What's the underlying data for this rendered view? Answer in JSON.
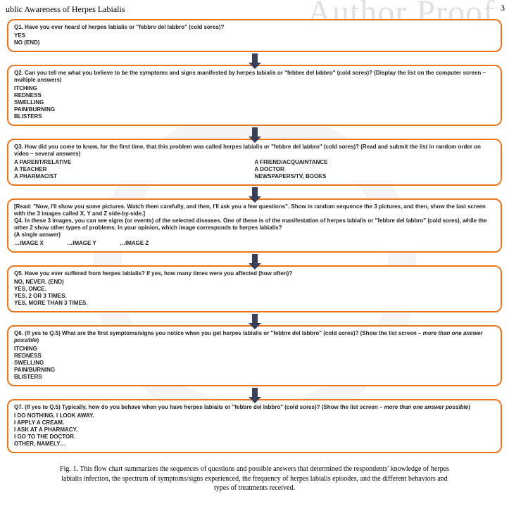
{
  "header": {
    "title": "ublic Awareness of Herpes Labialis",
    "page_num": "3"
  },
  "watermark": "Author Proof",
  "flow": {
    "box_border_color": "#e87722",
    "arrow_color": "#3b3f55",
    "q1": {
      "prompt": "Q1. Have you ever heard of herpes labialis or \"febbre del labbro\" (cold sores)?",
      "opts": [
        "YES",
        "NO (END)"
      ]
    },
    "q2": {
      "prompt": "Q2. Can you tell me what you believe to be the symptoms and signs manifested by herpes labialis or \"febbre del labbro\" (cold sores)? (Display the list on the computer screen – multiple answers)",
      "opts": [
        "ITCHING",
        "REDNESS",
        "SWELLING",
        "PAIN/BURNING",
        "BLISTERS"
      ]
    },
    "q3": {
      "prompt": "Q3. How did you come to know, for the first time, that this problem was called herpes labialis or \"febbre del labbro\" (cold sores)? (Read and submit the list in random order on video – several answers)",
      "opts_col1": [
        "A PARENT/RELATIVE",
        "A TEACHER",
        "A PHARMACIST"
      ],
      "opts_col2": [
        "A FRIEND/ACQUAINTANCE",
        "A DOCTOR",
        "NEWSPAPERS/TV, BOOKS"
      ]
    },
    "q4": {
      "intro": "[Read: \"Now, I'll show you some pictures. Watch them carefully, and then, I'll ask you a few questions\". Show in random sequence the 3 pictures, and then, show the last screen with the 3 images called X, Y and Z side-by-side.]",
      "prompt": "Q4.   In these 3 images, you can see signs (or events) of the selected diseases. One of these is of the manifestation of herpes labialis or \"febbre del labbro\" (cold sores), while the other 2 show other types of problems. In your opinion, which image corresponds to herpes labialis?",
      "sub": "(A single answer)",
      "opts_inline": "…IMAGE X               …IMAGE Y               …IMAGE Z"
    },
    "q5": {
      "prompt": "Q5. Have you ever suffered from herpes labialis? If yes, how many times were you affected (how often)?",
      "opts": [
        "NO, NEVER. (END)",
        "YES, ONCE.",
        "YES, 2 OR 3 TIMES.",
        "YES, MORE THAN 3 TIMES."
      ]
    },
    "q6": {
      "prompt_a": "Q6. (If yes to Q.5)  What are the first symptoms/signs you notice when you get herpes labialis or \"febbre del labbro\" (cold sores)? (Show the list screen – ",
      "prompt_i": "more than one answer possible",
      "prompt_b": ")",
      "opts": [
        "ITCHING",
        "REDNESS",
        "SWELLING",
        "PAIN/BURNING",
        "BLISTERS"
      ]
    },
    "q7": {
      "prompt_a": "Q7. (If yes to Q.5)  Typically, how do you behave when you have herpes labialis or \"febbre del labbro\" (cold sores)? (Show the list screen – ",
      "prompt_i": "more than one answer possible",
      "prompt_b": ")",
      "opts": [
        "I DO NOTHING, I LOOK AWAY.",
        "I APPLY A CREAM.",
        "I ASK AT A PHARMACY.",
        "I GO TO THE DOCTOR.",
        "OTHER, NAMELY…"
      ]
    }
  },
  "caption": "Fig. 1. This flow chart summarizes the sequences of questions and possible answers that determined the respondents' knowledge of herpes labialis infection, the spectrum of symptoms/signs experienced, the frequency of herpes labialis episodes, and the different behaviors and types of treatments received."
}
